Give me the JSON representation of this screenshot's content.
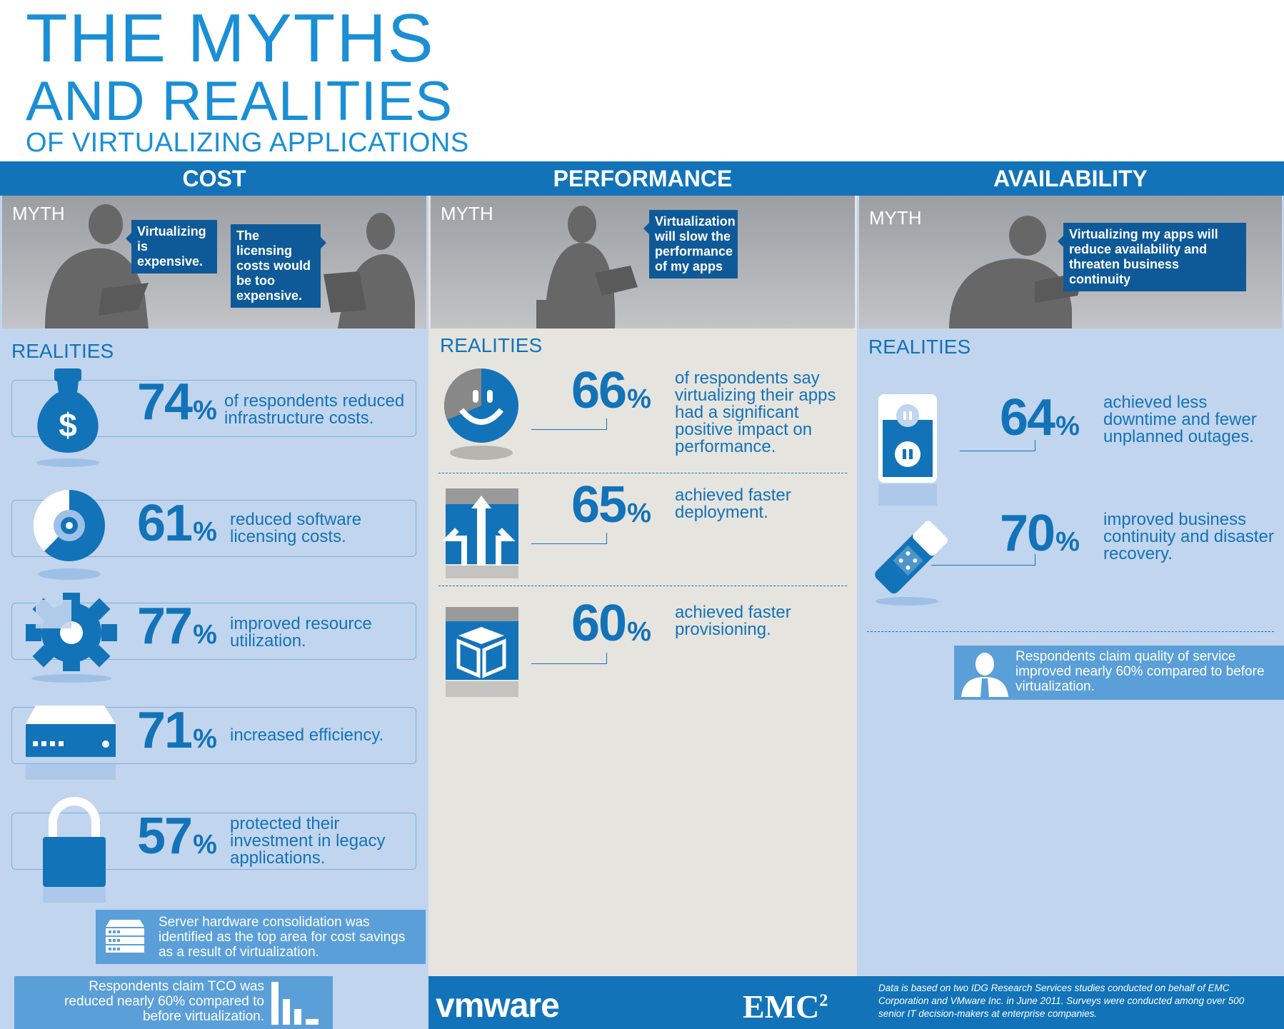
{
  "title": {
    "line1": "THE MYTHS",
    "line2": "AND REALITIES",
    "line3": "OF VIRTUALIZING APPLICATIONS"
  },
  "cost": {
    "header": "COST",
    "myth_label": "MYTH",
    "bubble1": "Virtualizing is expensive.",
    "bubble2": "The licensing costs would be too expensive.",
    "realities_label": "REALITIES",
    "stats": [
      {
        "pct": "74",
        "text": "of respondents reduced infrastructure costs.",
        "icon": "money-bag-icon"
      },
      {
        "pct": "61",
        "text": "reduced software licensing costs.",
        "icon": "disc-icon"
      },
      {
        "pct": "77",
        "text": "improved resource utilization.",
        "icon": "gear-icon"
      },
      {
        "pct": "71",
        "text": "increased efficiency.",
        "icon": "server-icon"
      },
      {
        "pct": "57",
        "text": "protected their investment in legacy applications.",
        "icon": "lock-icon"
      }
    ],
    "note": "Server hardware consolidation was identified as the top area for cost savings as a result of virtualization.",
    "tco_note": "Respondents claim TCO was reduced nearly 60% compared to before virtualization."
  },
  "performance": {
    "header": "PERFORMANCE",
    "myth_label": "MYTH",
    "bubble": "Virtualization will slow the performance of my apps",
    "realities_label": "REALITIES",
    "stats": [
      {
        "pct": "66",
        "text": "of respondents say virtualizing their apps had a significant positive impact on performance.",
        "icon": "smiley-icon"
      },
      {
        "pct": "65",
        "text": "achieved faster deployment.",
        "icon": "arrows-icon"
      },
      {
        "pct": "60",
        "text": "achieved faster provisioning.",
        "icon": "box-icon"
      }
    ]
  },
  "availability": {
    "header": "AVAILABILITY",
    "myth_label": "MYTH",
    "bubble": "Virtualizing my apps will reduce availability and threaten business continuity",
    "realities_label": "REALITIES",
    "stats": [
      {
        "pct": "64",
        "text": "achieved less downtime and fewer unplanned outages.",
        "icon": "power-outlet-icon"
      },
      {
        "pct": "70",
        "text": "improved business continuity and disaster recovery.",
        "icon": "bandage-icon"
      }
    ],
    "note": "Respondents claim quality of service improved nearly 60% compared to before virtualization."
  },
  "footer": {
    "vmware_logo": "vmware",
    "emc_logo": "EMC",
    "emc_sup": "2",
    "source": "Data is based on two IDG Research Services studies conducted on behalf of EMC Corporation and VMware Inc. in June 2011.  Surveys were conducted among over 500 senior IT decision-makers at enterprise companies."
  },
  "colors": {
    "accent": "#1273b9",
    "title": "#1a8fd6",
    "light_blue": "#c2d5ee",
    "note_blue": "#5b9fd9",
    "gray": "#666666"
  }
}
